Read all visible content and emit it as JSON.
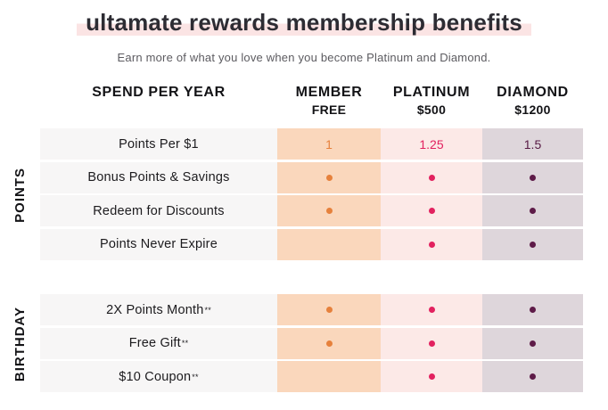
{
  "title": "ultamate rewards membership benefits",
  "subtitle": "Earn more of what you love when you become Platinum and Diamond.",
  "colors": {
    "title_text": "#2d2c33",
    "title_highlight": "#fbe4e4",
    "subtitle_text": "#5c5b60",
    "header_text": "#131316",
    "label_cell_bg": "#f7f6f6",
    "member_bg": "#fad7bc",
    "member_accent": "#e6813c",
    "platinum_bg": "#fce9e7",
    "platinum_accent": "#e2215f",
    "diamond_bg": "#ded6db",
    "diamond_accent": "#5e1b48",
    "diamond_value_text": "#571a44"
  },
  "table": {
    "spend_header": "SPEND PER YEAR",
    "plans": [
      {
        "id": "member",
        "name": "MEMBER",
        "price": "FREE"
      },
      {
        "id": "platinum",
        "name": "PLATINUM",
        "price": "$500"
      },
      {
        "id": "diamond",
        "name": "DIAMOND",
        "price": "$1200"
      }
    ],
    "sections": [
      {
        "group": "POINTS",
        "rows": [
          {
            "label": "Points Per $1",
            "note": "",
            "values": [
              "1",
              "1.25",
              "1.5"
            ]
          },
          {
            "label": "Bonus Points & Savings",
            "note": "",
            "values": [
              "dot",
              "dot",
              "dot"
            ]
          },
          {
            "label": "Redeem for Discounts",
            "note": "",
            "values": [
              "dot",
              "dot",
              "dot"
            ]
          },
          {
            "label": "Points Never Expire",
            "note": "",
            "values": [
              "",
              "dot",
              "dot"
            ]
          }
        ]
      },
      {
        "group": "BIRTHDAY",
        "rows": [
          {
            "label": "2X Points Month",
            "note": "**",
            "values": [
              "dot",
              "dot",
              "dot"
            ]
          },
          {
            "label": "Free Gift",
            "note": "**",
            "values": [
              "dot",
              "dot",
              "dot"
            ]
          },
          {
            "label": "$10 Coupon",
            "note": "**",
            "values": [
              "",
              "dot",
              "dot"
            ]
          }
        ]
      }
    ]
  }
}
